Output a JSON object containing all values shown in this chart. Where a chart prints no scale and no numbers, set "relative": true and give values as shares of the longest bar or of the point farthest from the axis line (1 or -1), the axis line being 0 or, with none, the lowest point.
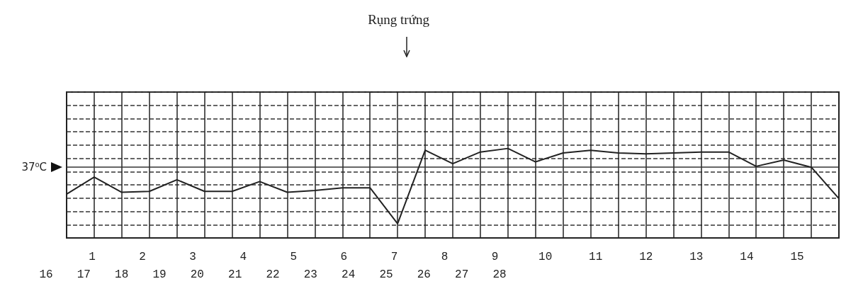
{
  "chart_data": {
    "type": "line",
    "relative": true,
    "categories": [
      null,
      null,
      null,
      null,
      null,
      null,
      null,
      null,
      null,
      null,
      null,
      null,
      null,
      null,
      null,
      null,
      null,
      null,
      null,
      null,
      null,
      null,
      null,
      null,
      null,
      null,
      null,
      null,
      null
    ],
    "series": [
      {
        "color": "#222222",
        "values": [
          0.49,
          0.68,
          0.51,
          0.52,
          0.65,
          0.52,
          0.52,
          0.63,
          0.51,
          0.53,
          0.56,
          0.56,
          0.16,
          0.98,
          0.83,
          0.96,
          1,
          0.85,
          0.95,
          0.98,
          0.95,
          0.94,
          0.95,
          0.96,
          0.96,
          0.8,
          0.87,
          0.79,
          0.44
        ]
      }
    ],
    "marker": "none",
    "line_style": "solid",
    "grid": true,
    "ref_lines": [
      {
        "axis": "y",
        "value": 0.79,
        "label": "37⁰C",
        "color": "#333333"
      }
    ],
    "annotations": [
      "Rụng trứng",
      "1 2 3 4 5 6 7 8 9 10 11 12 13 14 15",
      "16 17 18 19 20 21 22 23 24 25 26 27 28"
    ]
  }
}
